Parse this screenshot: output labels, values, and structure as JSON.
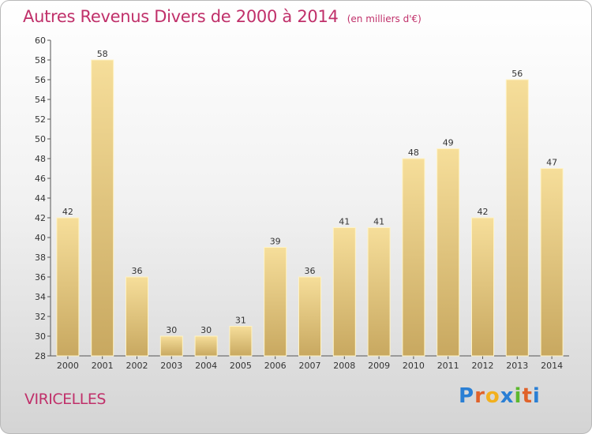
{
  "header": {
    "title": "Autres Revenus Divers de 2000 à 2014",
    "unit": "(en milliers d'€)"
  },
  "footer": {
    "town": "VIRICELLES",
    "logo": "Proxiti"
  },
  "colors": {
    "title": "#c0306a",
    "bar_top": "#f6de9a",
    "bar_bottom": "#c8a860",
    "logo": [
      "#2a7fd4",
      "#e0622a",
      "#f2b01e",
      "#2a7fd4",
      "#5cb82e",
      "#e0622a",
      "#2a7fd4"
    ]
  },
  "chart_data": {
    "type": "bar",
    "title": "Autres Revenus Divers de 2000 à 2014",
    "categories": [
      "2000",
      "2001",
      "2002",
      "2003",
      "2004",
      "2005",
      "2006",
      "2007",
      "2008",
      "2009",
      "2010",
      "2011",
      "2012",
      "2013",
      "2014"
    ],
    "values": [
      42,
      58,
      36,
      30,
      30,
      31,
      39,
      36,
      41,
      41,
      48,
      49,
      42,
      56,
      47
    ],
    "ylim": [
      28,
      60
    ],
    "yticks": [
      28,
      30,
      32,
      34,
      36,
      38,
      40,
      42,
      44,
      46,
      48,
      50,
      52,
      54,
      56,
      58,
      60
    ],
    "grid": false,
    "legend": "none"
  }
}
